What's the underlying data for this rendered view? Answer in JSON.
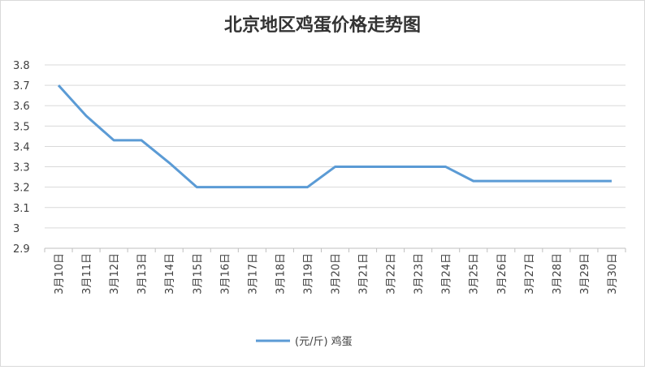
{
  "chart_data": {
    "type": "line",
    "title": "北京地区鸡蛋价格走势图",
    "categories": [
      "3月10日",
      "3月11日",
      "3月12日",
      "3月13日",
      "3月14日",
      "3月15日",
      "3月16日",
      "3月17日",
      "3月18日",
      "3月19日",
      "3月20日",
      "3月21日",
      "3月22日",
      "3月23日",
      "3月24日",
      "3月25日",
      "3月26日",
      "3月27日",
      "3月28日",
      "3月29日",
      "3月30日"
    ],
    "series": [
      {
        "name": "(元/斤) 鸡蛋",
        "color": "#5b9bd5",
        "values": [
          3.7,
          3.55,
          3.43,
          3.43,
          3.32,
          3.2,
          3.2,
          3.2,
          3.2,
          3.2,
          3.3,
          3.3,
          3.3,
          3.3,
          3.3,
          3.23,
          3.23,
          3.23,
          3.23,
          3.23,
          3.23
        ]
      }
    ],
    "ylim": [
      2.9,
      3.8
    ],
    "yticks": [
      2.9,
      3,
      3.1,
      3.2,
      3.3,
      3.4,
      3.5,
      3.6,
      3.7,
      3.8
    ],
    "grid": true,
    "legend": "bottom"
  }
}
